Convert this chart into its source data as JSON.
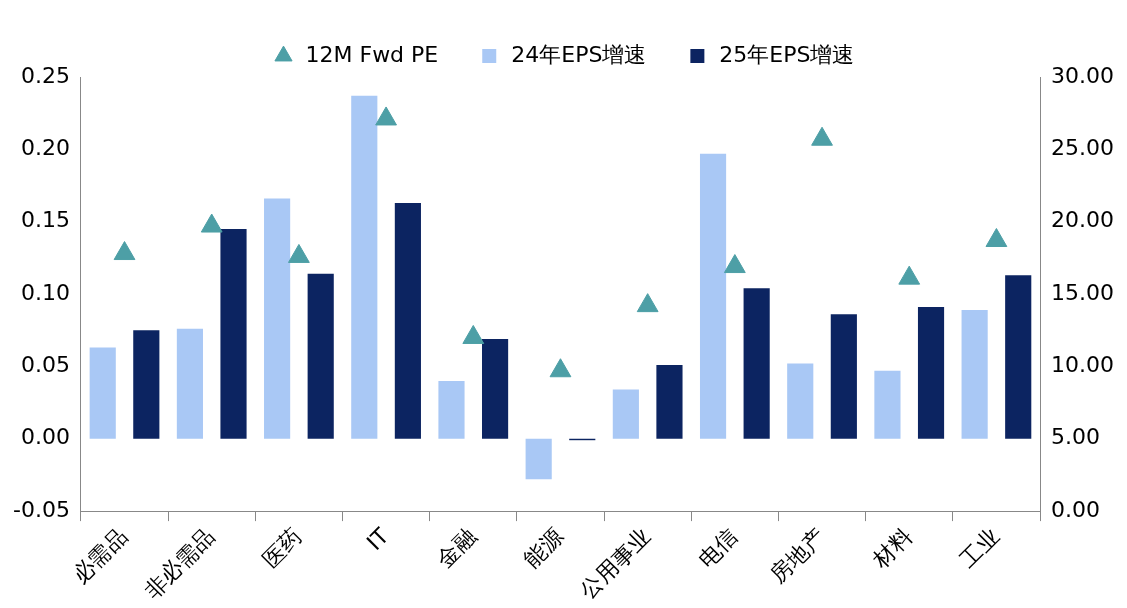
{
  "chart_data": {
    "type": "bar",
    "categories": [
      "必需品",
      "非必需品",
      "医药",
      "IT",
      "金融",
      "能源",
      "公用事业",
      "电信",
      "房地产",
      "材料",
      "工业"
    ],
    "series": [
      {
        "name": "24年EPS增速",
        "color": "#a9c8f5",
        "values": [
          0.063,
          0.076,
          0.166,
          0.237,
          0.04,
          -0.028,
          0.034,
          0.197,
          0.052,
          0.047,
          0.089
        ]
      },
      {
        "name": "25年EPS增速",
        "color": "#0c2461",
        "values": [
          0.075,
          0.145,
          0.114,
          0.163,
          0.069,
          -0.001,
          0.051,
          0.104,
          0.086,
          0.091,
          0.113
        ]
      },
      {
        "name": "12M Fwd PE",
        "type": "scatter",
        "axis": "y2",
        "marker": "triangle",
        "color": "#4d9fa6",
        "values": [
          17.8,
          19.7,
          17.6,
          27.1,
          12.0,
          9.7,
          14.2,
          16.9,
          25.7,
          16.1,
          18.7
        ]
      }
    ],
    "ylim": [
      -0.05,
      0.25
    ],
    "yticks": [
      {
        "value": -0.05,
        "label": "-0.05"
      },
      {
        "value": 0,
        "label": "0.00"
      },
      {
        "value": 0.05,
        "label": "0.05"
      },
      {
        "value": 0.1,
        "label": "0.10"
      },
      {
        "value": 0.15,
        "label": "0.15"
      },
      {
        "value": 0.2,
        "label": "0.20"
      },
      {
        "value": 0.25,
        "label": "0.25"
      }
    ],
    "y2lim": [
      0,
      30
    ],
    "y2ticks": [
      {
        "value": 0,
        "label": "0.00"
      },
      {
        "value": 5,
        "label": "5.00"
      },
      {
        "value": 10,
        "label": "10.00"
      },
      {
        "value": 15,
        "label": "15.00"
      },
      {
        "value": 20,
        "label": "20.00"
      },
      {
        "value": 25,
        "label": "25.00"
      },
      {
        "value": 30,
        "label": "30.00"
      }
    ],
    "grid": false,
    "legend": "top"
  }
}
